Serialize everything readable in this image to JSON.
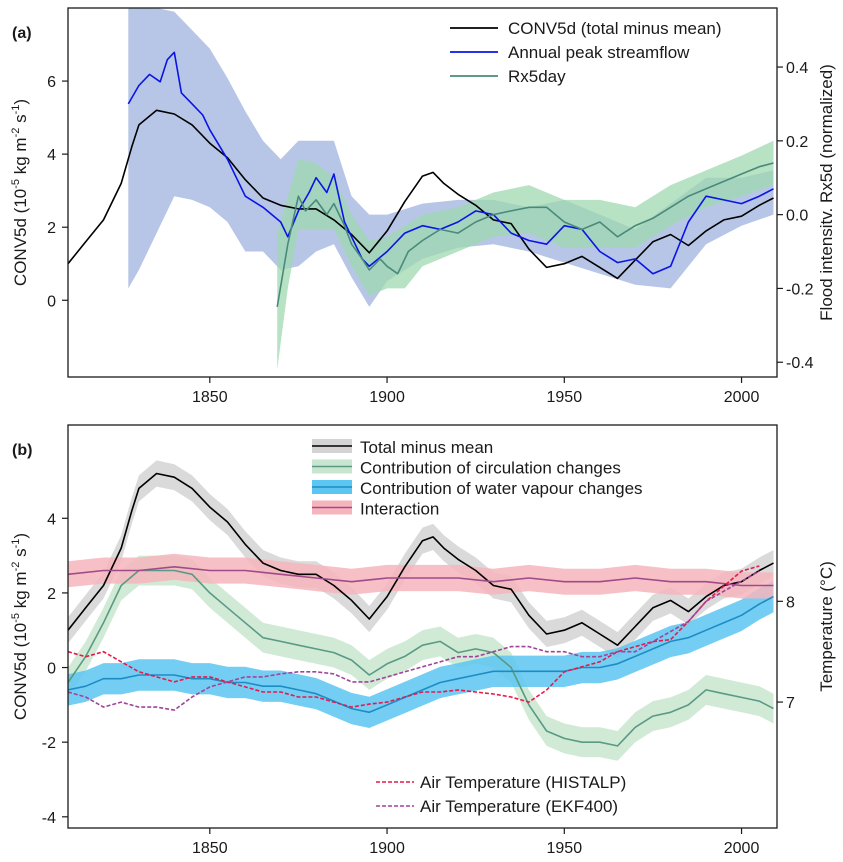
{
  "chart_data": [
    {
      "panel": "(a)",
      "type": "line",
      "xlim": [
        1810,
        2010
      ],
      "xticks": [
        1850,
        1900,
        1950,
        2000
      ],
      "y_left": {
        "label_main": "CONV5d (10",
        "label_exp1": "-5",
        "label_mid1": " kg m",
        "label_exp2": "-2",
        "label_mid2": " s",
        "label_exp3": "-1",
        "label_end": ")",
        "ylim": [
          -2.1,
          8.0
        ],
        "ticks": [
          0,
          2,
          4,
          6
        ]
      },
      "y_right": {
        "label": "Flood intensitv. Rx5d (normalized)",
        "ylim": [
          -0.44,
          0.56
        ],
        "ticks": [
          -0.4,
          -0.2,
          0.0,
          0.2,
          0.4
        ],
        "tick_labels": [
          "-0.4",
          "-0.2",
          "0.0",
          "0.2",
          "0.4"
        ]
      },
      "legend_position": "top-right",
      "colors": {
        "conv": "#000000",
        "stream": "#0a14e6",
        "stream_band": "#9fb3df",
        "rx": "#4a8a7a",
        "rx_band": "#9fd8b0"
      },
      "series": [
        {
          "name": "CONV5d (total minus mean)",
          "axis": "left",
          "x": [
            1810,
            1815,
            1820,
            1825,
            1828,
            1830,
            1835,
            1840,
            1845,
            1850,
            1855,
            1860,
            1865,
            1870,
            1875,
            1880,
            1885,
            1890,
            1895,
            1900,
            1905,
            1910,
            1913,
            1916,
            1920,
            1925,
            1930,
            1935,
            1940,
            1945,
            1950,
            1955,
            1960,
            1965,
            1970,
            1975,
            1980,
            1985,
            1990,
            1995,
            2000,
            2005,
            2009
          ],
          "values": [
            1.0,
            1.6,
            2.2,
            3.2,
            4.2,
            4.8,
            5.2,
            5.1,
            4.8,
            4.3,
            3.9,
            3.3,
            2.8,
            2.6,
            2.5,
            2.5,
            2.2,
            1.8,
            1.3,
            1.9,
            2.7,
            3.4,
            3.5,
            3.2,
            2.9,
            2.6,
            2.2,
            2.1,
            1.4,
            0.9,
            1.0,
            1.2,
            0.9,
            0.6,
            1.1,
            1.6,
            1.8,
            1.5,
            1.9,
            2.2,
            2.3,
            2.6,
            2.8
          ]
        },
        {
          "name": "Annual peak streamflow",
          "axis": "right",
          "x": [
            1827,
            1830,
            1833,
            1836,
            1838,
            1840,
            1842,
            1845,
            1848,
            1850,
            1855,
            1860,
            1865,
            1870,
            1872,
            1875,
            1878,
            1880,
            1883,
            1885,
            1888,
            1890,
            1893,
            1895,
            1900,
            1905,
            1910,
            1915,
            1920,
            1925,
            1930,
            1935,
            1940,
            1945,
            1950,
            1955,
            1960,
            1965,
            1970,
            1975,
            1980,
            1985,
            1990,
            1995,
            2000,
            2005,
            2009
          ],
          "values": [
            0.3,
            0.35,
            0.38,
            0.36,
            0.42,
            0.44,
            0.33,
            0.3,
            0.27,
            0.23,
            0.15,
            0.05,
            0.02,
            -0.02,
            -0.06,
            0.01,
            0.06,
            0.1,
            0.06,
            0.11,
            -0.02,
            -0.06,
            -0.12,
            -0.14,
            -0.1,
            -0.05,
            -0.03,
            -0.04,
            -0.02,
            0.01,
            0.0,
            -0.05,
            -0.07,
            -0.08,
            -0.03,
            -0.04,
            -0.1,
            -0.13,
            -0.12,
            -0.16,
            -0.14,
            -0.02,
            0.05,
            0.04,
            0.03,
            0.05,
            0.07
          ]
        },
        {
          "name": "Rx5day",
          "axis": "right",
          "x": [
            1869,
            1872,
            1875,
            1877,
            1880,
            1883,
            1885,
            1888,
            1890,
            1893,
            1895,
            1898,
            1900,
            1903,
            1906,
            1910,
            1915,
            1920,
            1925,
            1930,
            1935,
            1940,
            1945,
            1950,
            1955,
            1960,
            1965,
            1970,
            1975,
            1980,
            1985,
            1990,
            1995,
            2000,
            2005,
            2009
          ],
          "values": [
            -0.25,
            -0.08,
            0.05,
            0.01,
            0.04,
            0.0,
            0.03,
            -0.03,
            -0.08,
            -0.12,
            -0.15,
            -0.12,
            -0.14,
            -0.16,
            -0.1,
            -0.07,
            -0.04,
            -0.05,
            -0.02,
            0.0,
            0.01,
            0.02,
            0.02,
            -0.02,
            -0.04,
            -0.02,
            -0.06,
            -0.03,
            -0.01,
            0.02,
            0.05,
            0.07,
            0.09,
            0.11,
            0.13,
            0.14
          ]
        }
      ],
      "bands": [
        {
          "of": "Annual peak streamflow",
          "x": [
            1827,
            1830,
            1835,
            1840,
            1845,
            1850,
            1855,
            1860,
            1865,
            1870,
            1875,
            1880,
            1885,
            1890,
            1895,
            1900,
            1910,
            1920,
            1930,
            1940,
            1950,
            1960,
            1970,
            1980,
            1990,
            2000,
            2009
          ],
          "lower": [
            -0.2,
            -0.15,
            -0.05,
            0.05,
            0.04,
            0.02,
            -0.02,
            -0.1,
            -0.1,
            -0.15,
            -0.14,
            -0.1,
            -0.08,
            -0.17,
            -0.25,
            -0.18,
            -0.12,
            -0.09,
            -0.08,
            -0.1,
            -0.13,
            -0.16,
            -0.19,
            -0.2,
            -0.08,
            -0.03,
            0.0
          ],
          "upper": [
            0.6,
            0.58,
            0.56,
            0.55,
            0.5,
            0.45,
            0.37,
            0.28,
            0.2,
            0.15,
            0.2,
            0.2,
            0.2,
            0.05,
            0.0,
            0.0,
            0.03,
            0.04,
            0.04,
            0.02,
            0.04,
            0.0,
            -0.04,
            0.03,
            0.1,
            0.1,
            0.12
          ]
        },
        {
          "of": "Rx5day",
          "x": [
            1869,
            1872,
            1875,
            1880,
            1885,
            1890,
            1895,
            1900,
            1905,
            1910,
            1920,
            1930,
            1940,
            1950,
            1960,
            1970,
            1980,
            1990,
            2000,
            2009
          ],
          "lower": [
            -0.42,
            -0.2,
            -0.04,
            -0.04,
            -0.04,
            -0.14,
            -0.22,
            -0.2,
            -0.2,
            -0.14,
            -0.1,
            -0.06,
            -0.05,
            -0.09,
            -0.09,
            -0.09,
            -0.03,
            0.02,
            0.05,
            0.08
          ],
          "upper": [
            -0.05,
            0.05,
            0.15,
            0.14,
            0.1,
            0.0,
            -0.07,
            -0.06,
            -0.03,
            0.0,
            0.02,
            0.06,
            0.08,
            0.04,
            0.04,
            0.02,
            0.08,
            0.12,
            0.16,
            0.2
          ]
        }
      ]
    },
    {
      "panel": "(b)",
      "type": "line",
      "xlim": [
        1810,
        2010
      ],
      "xticks": [
        1850,
        1900,
        1950,
        2000
      ],
      "y_left": {
        "label_main": "CONV5d (10",
        "label_exp1": "-5",
        "label_mid1": " kg m",
        "label_exp2": "-2",
        "label_mid2": " s",
        "label_exp3": "-1",
        "label_end": ")",
        "ylim": [
          -4.3,
          6.5
        ],
        "ticks": [
          -4,
          -2,
          0,
          2,
          4
        ]
      },
      "y_right": {
        "label": "Temperature (°C)",
        "ylim": [
          5.75,
          9.75
        ],
        "ticks": [
          7,
          8
        ],
        "tick_labels": [
          "7",
          "8"
        ]
      },
      "legend_position": "top-center",
      "colors": {
        "total": "#000000",
        "total_band": "#d4d4d4",
        "circ": "#5a9a84",
        "circ_band": "#c8e6cf",
        "water": "#1e8cc4",
        "water_band": "#5cc6f2",
        "inter": "#a14a8a",
        "inter_band": "#f6b5bc",
        "histalp": "#e6194b",
        "ekf400": "#a0449a"
      },
      "series": [
        {
          "name": "Total minus mean",
          "axis": "left",
          "x": [
            1810,
            1815,
            1820,
            1825,
            1828,
            1830,
            1835,
            1840,
            1845,
            1850,
            1855,
            1860,
            1865,
            1870,
            1875,
            1880,
            1885,
            1890,
            1895,
            1900,
            1905,
            1910,
            1913,
            1916,
            1920,
            1925,
            1930,
            1935,
            1940,
            1945,
            1950,
            1955,
            1960,
            1965,
            1970,
            1975,
            1980,
            1985,
            1990,
            1995,
            2000,
            2005,
            2009
          ],
          "values": [
            1.0,
            1.6,
            2.2,
            3.2,
            4.2,
            4.8,
            5.2,
            5.1,
            4.8,
            4.3,
            3.9,
            3.3,
            2.8,
            2.6,
            2.5,
            2.5,
            2.2,
            1.8,
            1.3,
            1.9,
            2.7,
            3.4,
            3.5,
            3.2,
            2.9,
            2.6,
            2.2,
            2.1,
            1.4,
            0.9,
            1.0,
            1.2,
            0.9,
            0.6,
            1.1,
            1.6,
            1.8,
            1.5,
            1.9,
            2.2,
            2.3,
            2.6,
            2.8
          ],
          "band_halfwidth": 0.35
        },
        {
          "name": "Contribution of circulation changes",
          "axis": "left",
          "x": [
            1810,
            1815,
            1820,
            1825,
            1830,
            1835,
            1840,
            1845,
            1850,
            1855,
            1860,
            1865,
            1870,
            1875,
            1880,
            1885,
            1890,
            1895,
            1900,
            1905,
            1910,
            1915,
            1920,
            1925,
            1930,
            1935,
            1940,
            1945,
            1950,
            1955,
            1960,
            1965,
            1970,
            1975,
            1980,
            1985,
            1990,
            1995,
            2000,
            2005,
            2009
          ],
          "values": [
            -0.4,
            0.3,
            1.2,
            2.2,
            2.6,
            2.6,
            2.6,
            2.5,
            2.0,
            1.6,
            1.2,
            0.8,
            0.7,
            0.6,
            0.5,
            0.4,
            0.2,
            -0.2,
            0.1,
            0.3,
            0.6,
            0.7,
            0.4,
            0.5,
            0.4,
            0.0,
            -1.0,
            -1.7,
            -1.9,
            -2.0,
            -2.0,
            -2.1,
            -1.6,
            -1.3,
            -1.2,
            -1.0,
            -0.6,
            -0.7,
            -0.8,
            -0.9,
            -1.1
          ],
          "band_halfwidth": 0.4
        },
        {
          "name": "Contribution of water vapour changes",
          "axis": "left",
          "x": [
            1810,
            1815,
            1820,
            1825,
            1830,
            1835,
            1840,
            1845,
            1850,
            1855,
            1860,
            1865,
            1870,
            1875,
            1880,
            1885,
            1890,
            1895,
            1900,
            1905,
            1910,
            1915,
            1920,
            1925,
            1930,
            1935,
            1940,
            1945,
            1950,
            1955,
            1960,
            1965,
            1970,
            1975,
            1980,
            1985,
            1990,
            1995,
            2000,
            2005,
            2009
          ],
          "values": [
            -0.6,
            -0.5,
            -0.3,
            -0.3,
            -0.2,
            -0.2,
            -0.2,
            -0.3,
            -0.3,
            -0.4,
            -0.4,
            -0.5,
            -0.5,
            -0.6,
            -0.7,
            -0.9,
            -1.1,
            -1.2,
            -1.0,
            -0.8,
            -0.6,
            -0.4,
            -0.3,
            -0.2,
            -0.1,
            -0.1,
            -0.1,
            -0.1,
            -0.1,
            0.0,
            0.0,
            0.1,
            0.3,
            0.5,
            0.7,
            0.8,
            1.0,
            1.2,
            1.4,
            1.7,
            1.9
          ],
          "band_halfwidth": 0.42
        },
        {
          "name": "Interaction",
          "axis": "left",
          "x": [
            1810,
            1820,
            1830,
            1840,
            1850,
            1860,
            1870,
            1880,
            1890,
            1900,
            1910,
            1920,
            1930,
            1940,
            1950,
            1960,
            1970,
            1980,
            1990,
            2000,
            2009
          ],
          "values": [
            2.5,
            2.6,
            2.6,
            2.7,
            2.6,
            2.6,
            2.5,
            2.4,
            2.3,
            2.4,
            2.4,
            2.4,
            2.3,
            2.4,
            2.3,
            2.3,
            2.4,
            2.3,
            2.3,
            2.2,
            2.2
          ],
          "band_halfwidth": 0.35
        },
        {
          "name": "Air Temperature (HISTALP)",
          "axis": "right",
          "dash": true,
          "x": [
            1810,
            1815,
            1820,
            1825,
            1830,
            1835,
            1840,
            1845,
            1850,
            1855,
            1860,
            1865,
            1870,
            1875,
            1880,
            1885,
            1890,
            1895,
            1900,
            1905,
            1910,
            1915,
            1920,
            1925,
            1930,
            1935,
            1940,
            1945,
            1950,
            1955,
            1960,
            1965,
            1970,
            1975,
            1980,
            1985,
            1990,
            1995,
            2000,
            2005
          ],
          "values": [
            7.5,
            7.45,
            7.5,
            7.4,
            7.3,
            7.25,
            7.2,
            7.25,
            7.25,
            7.2,
            7.15,
            7.1,
            7.1,
            7.05,
            7.05,
            7.0,
            6.95,
            6.98,
            7.0,
            7.05,
            7.1,
            7.1,
            7.12,
            7.1,
            7.08,
            7.05,
            7.0,
            7.12,
            7.3,
            7.35,
            7.4,
            7.5,
            7.55,
            7.6,
            7.62,
            7.8,
            8.0,
            8.15,
            8.3,
            8.35
          ]
        },
        {
          "name": "Air Temperature (EKF400)",
          "axis": "right",
          "dash": true,
          "x": [
            1810,
            1815,
            1820,
            1825,
            1830,
            1835,
            1840,
            1845,
            1850,
            1855,
            1860,
            1865,
            1870,
            1875,
            1880,
            1885,
            1890,
            1895,
            1900,
            1905,
            1910,
            1915,
            1920,
            1925,
            1930,
            1935,
            1940,
            1945,
            1950,
            1955,
            1960,
            1965,
            1970,
            1975,
            1980,
            1985,
            1990,
            1995,
            2000,
            2005
          ],
          "values": [
            7.1,
            7.05,
            6.95,
            7.0,
            6.95,
            6.95,
            6.92,
            7.05,
            7.15,
            7.2,
            7.25,
            7.25,
            7.28,
            7.3,
            7.3,
            7.28,
            7.2,
            7.2,
            7.25,
            7.3,
            7.35,
            7.4,
            7.45,
            7.45,
            7.5,
            7.55,
            7.55,
            7.5,
            7.5,
            7.45,
            7.45,
            7.5,
            7.5,
            7.6,
            7.7,
            7.8,
            8.0,
            8.1,
            8.2,
            8.3
          ]
        }
      ]
    }
  ],
  "panel_b_legend_bottom": [
    "Air Temperature (HISTALP)",
    "Air Temperature (EKF400)"
  ]
}
